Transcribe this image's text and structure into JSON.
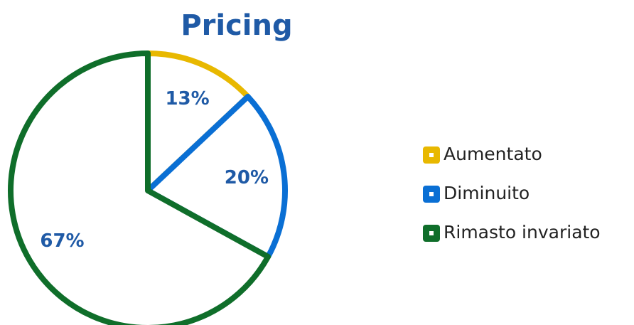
{
  "chart_data": {
    "type": "pie",
    "title": "Pricing",
    "categories": [
      "Aumentato",
      "Diminuito",
      "Rimasto invariato"
    ],
    "values": [
      13,
      20,
      67
    ],
    "value_labels": [
      "13%",
      "20%",
      "67%"
    ],
    "colors": [
      "#e8b800",
      "#0a6fd4",
      "#0f6e2a"
    ],
    "legend": "right"
  }
}
